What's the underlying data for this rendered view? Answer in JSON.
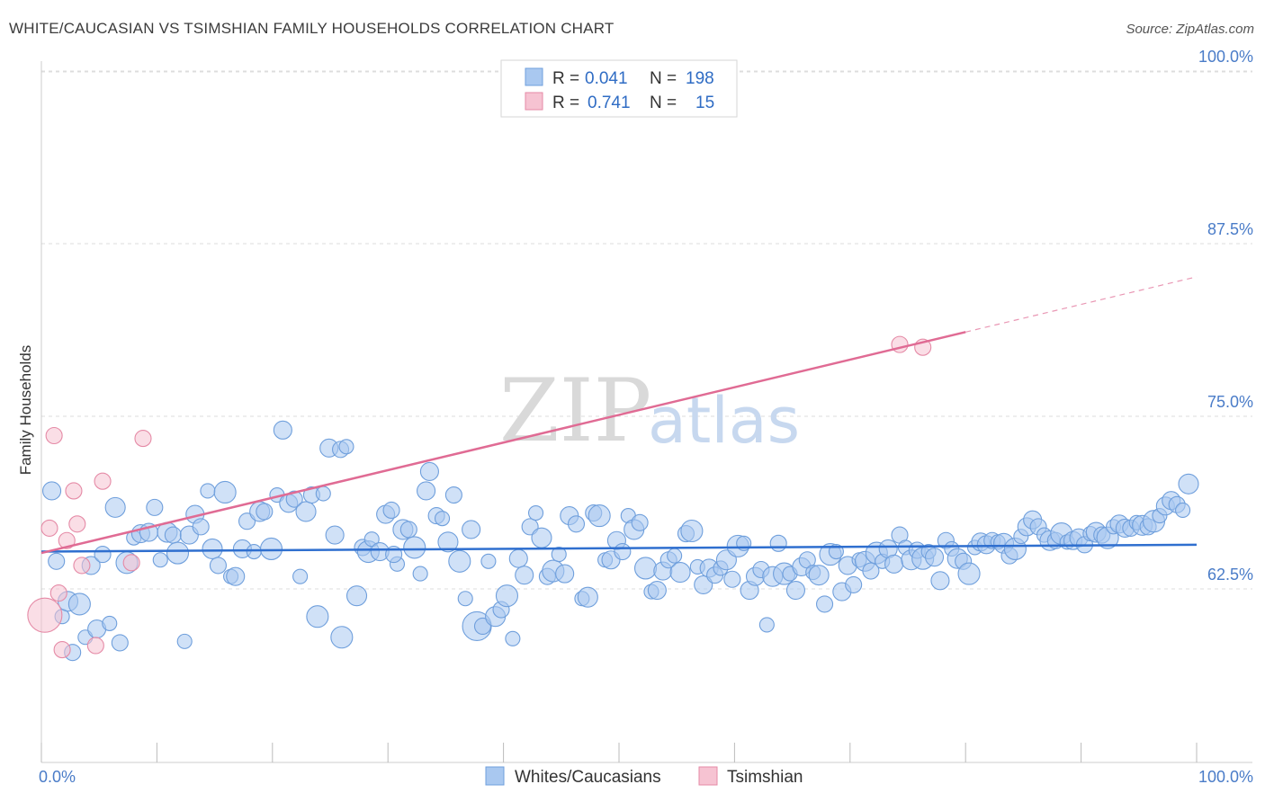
{
  "title": "WHITE/CAUCASIAN VS TSIMSHIAN FAMILY HOUSEHOLDS CORRELATION CHART",
  "source": "Source: ZipAtlas.com",
  "watermark": {
    "zip": "ZIP",
    "atlas": "atlas"
  },
  "colors": {
    "blue_fill": "#a9c8f0",
    "blue_stroke": "#6f9fdc",
    "blue_line": "#2f6fcf",
    "pink_fill": "#f6c3d2",
    "pink_stroke": "#e58aa6",
    "pink_line": "#e06b94",
    "grid": "#dddddd",
    "axis_text": "#4a7cc8"
  },
  "legend": {
    "rows": [
      {
        "r_label": "R =",
        "r_value": "0.041",
        "n_label": "N =",
        "n_value": "198",
        "color": "#a9c8f0"
      },
      {
        "r_label": "R =",
        "r_value": "0.741",
        "n_label": "N =",
        "n_value": "15",
        "color": "#f6c3d2"
      }
    ]
  },
  "chart_data": {
    "type": "scatter",
    "title": "WHITE/CAUCASIAN VS TSIMSHIAN FAMILY HOUSEHOLDS CORRELATION CHART",
    "ylabel": "Family Households",
    "xlabel": "",
    "xlim": [
      0,
      100
    ],
    "ylim": [
      52,
      100
    ],
    "x_tick_labels": [
      "0.0%",
      "100.0%"
    ],
    "y_ticks": [
      62.5,
      75.0,
      87.5,
      100.0
    ],
    "y_tick_labels": [
      "62.5%",
      "75.0%",
      "87.5%",
      "100.0%"
    ],
    "grid": true,
    "legend_position": "top-center",
    "series": [
      {
        "name": "Whites/Caucasians",
        "color": "#a9c8f0",
        "trend": {
          "x": [
            0,
            100
          ],
          "y": [
            65.2,
            65.7
          ]
        },
        "points": [
          [
            0.9,
            69.6
          ],
          [
            1.3,
            64.5
          ],
          [
            1.8,
            60.5
          ],
          [
            2.3,
            61.6
          ],
          [
            2.7,
            57.9
          ],
          [
            3.3,
            61.4
          ],
          [
            3.8,
            59.0
          ],
          [
            4.3,
            64.2
          ],
          [
            4.8,
            59.6
          ],
          [
            5.3,
            65.0
          ],
          [
            5.9,
            60.0
          ],
          [
            6.4,
            68.4
          ],
          [
            6.8,
            58.6
          ],
          [
            7.4,
            64.4
          ],
          [
            8.0,
            66.2
          ],
          [
            8.6,
            66.5
          ],
          [
            9.3,
            66.6
          ],
          [
            9.8,
            68.4
          ],
          [
            10.3,
            64.6
          ],
          [
            10.9,
            66.6
          ],
          [
            11.4,
            66.4
          ],
          [
            11.8,
            65.1
          ],
          [
            12.4,
            58.7
          ],
          [
            12.8,
            66.4
          ],
          [
            13.3,
            67.9
          ],
          [
            13.8,
            67.0
          ],
          [
            14.4,
            69.6
          ],
          [
            14.8,
            65.4
          ],
          [
            15.3,
            64.2
          ],
          [
            15.9,
            69.5
          ],
          [
            16.4,
            63.4
          ],
          [
            16.8,
            63.4
          ],
          [
            17.4,
            65.4
          ],
          [
            17.8,
            67.4
          ],
          [
            18.4,
            65.2
          ],
          [
            18.9,
            68.1
          ],
          [
            19.3,
            68.1
          ],
          [
            19.9,
            65.4
          ],
          [
            20.4,
            69.3
          ],
          [
            20.9,
            74.0
          ],
          [
            21.4,
            68.7
          ],
          [
            21.9,
            69.0
          ],
          [
            22.4,
            63.4
          ],
          [
            22.9,
            68.1
          ],
          [
            23.4,
            69.3
          ],
          [
            23.9,
            60.5
          ],
          [
            24.4,
            69.4
          ],
          [
            24.9,
            72.7
          ],
          [
            25.4,
            66.4
          ],
          [
            25.9,
            72.6
          ],
          [
            26.4,
            72.8
          ],
          [
            27.3,
            62.0
          ],
          [
            27.8,
            65.5
          ],
          [
            28.3,
            65.2
          ],
          [
            28.6,
            66.1
          ],
          [
            29.3,
            65.2
          ],
          [
            29.8,
            67.9
          ],
          [
            30.3,
            68.2
          ],
          [
            30.8,
            64.3
          ],
          [
            31.3,
            66.8
          ],
          [
            31.8,
            66.8
          ],
          [
            32.3,
            65.5
          ],
          [
            32.8,
            63.6
          ],
          [
            33.3,
            69.6
          ],
          [
            33.6,
            71.0
          ],
          [
            34.2,
            67.8
          ],
          [
            34.7,
            67.6
          ],
          [
            35.2,
            65.9
          ],
          [
            35.7,
            69.3
          ],
          [
            36.2,
            64.5
          ],
          [
            36.7,
            61.8
          ],
          [
            37.2,
            66.8
          ],
          [
            37.7,
            59.8
          ],
          [
            38.2,
            59.8
          ],
          [
            38.7,
            64.5
          ],
          [
            39.3,
            60.5
          ],
          [
            39.8,
            61.0
          ],
          [
            40.3,
            62.0
          ],
          [
            40.8,
            58.9
          ],
          [
            41.3,
            64.7
          ],
          [
            41.8,
            63.5
          ],
          [
            42.3,
            67.0
          ],
          [
            42.8,
            68.0
          ],
          [
            43.3,
            66.2
          ],
          [
            43.8,
            63.4
          ],
          [
            44.3,
            63.8
          ],
          [
            44.8,
            65.0
          ],
          [
            45.3,
            63.6
          ],
          [
            45.7,
            67.8
          ],
          [
            46.3,
            67.2
          ],
          [
            46.8,
            61.8
          ],
          [
            47.3,
            61.9
          ],
          [
            47.8,
            68.0
          ],
          [
            48.3,
            67.8
          ],
          [
            48.8,
            64.6
          ],
          [
            49.3,
            64.6
          ],
          [
            49.8,
            66.0
          ],
          [
            50.3,
            65.2
          ],
          [
            50.8,
            67.8
          ],
          [
            51.3,
            66.8
          ],
          [
            51.8,
            67.3
          ],
          [
            52.3,
            64.0
          ],
          [
            52.8,
            62.3
          ],
          [
            53.3,
            62.4
          ],
          [
            53.8,
            63.8
          ],
          [
            54.3,
            64.6
          ],
          [
            54.8,
            64.9
          ],
          [
            55.3,
            63.7
          ],
          [
            55.8,
            66.5
          ],
          [
            56.3,
            66.7
          ],
          [
            56.8,
            64.1
          ],
          [
            57.3,
            62.8
          ],
          [
            57.8,
            64.0
          ],
          [
            58.3,
            63.5
          ],
          [
            58.8,
            64.0
          ],
          [
            59.3,
            64.6
          ],
          [
            59.8,
            63.2
          ],
          [
            60.3,
            65.6
          ],
          [
            60.8,
            65.8
          ],
          [
            61.3,
            62.4
          ],
          [
            61.8,
            63.4
          ],
          [
            62.3,
            63.9
          ],
          [
            62.8,
            59.9
          ],
          [
            63.3,
            63.4
          ],
          [
            63.8,
            65.8
          ],
          [
            64.3,
            63.6
          ],
          [
            64.8,
            63.6
          ],
          [
            65.3,
            62.4
          ],
          [
            65.8,
            64.1
          ],
          [
            66.3,
            64.6
          ],
          [
            66.8,
            63.7
          ],
          [
            67.3,
            63.5
          ],
          [
            67.8,
            61.4
          ],
          [
            68.3,
            65.0
          ],
          [
            68.8,
            65.2
          ],
          [
            69.3,
            62.3
          ],
          [
            69.8,
            64.2
          ],
          [
            70.3,
            62.8
          ],
          [
            70.8,
            64.6
          ],
          [
            71.3,
            64.5
          ],
          [
            71.8,
            63.8
          ],
          [
            72.3,
            65.1
          ],
          [
            72.8,
            64.5
          ],
          [
            73.3,
            65.4
          ],
          [
            73.8,
            64.3
          ],
          [
            74.3,
            66.4
          ],
          [
            74.8,
            65.5
          ],
          [
            75.3,
            64.6
          ],
          [
            75.8,
            65.3
          ],
          [
            76.3,
            64.7
          ],
          [
            76.8,
            65.2
          ],
          [
            77.3,
            64.8
          ],
          [
            77.8,
            63.1
          ],
          [
            78.3,
            66.0
          ],
          [
            78.8,
            65.4
          ],
          [
            79.3,
            64.7
          ],
          [
            79.8,
            64.5
          ],
          [
            80.3,
            63.6
          ],
          [
            80.8,
            65.5
          ],
          [
            81.3,
            65.9
          ],
          [
            81.8,
            65.7
          ],
          [
            82.3,
            66.0
          ],
          [
            82.8,
            65.9
          ],
          [
            83.3,
            65.8
          ],
          [
            83.8,
            64.9
          ],
          [
            84.3,
            65.4
          ],
          [
            84.8,
            66.3
          ],
          [
            85.3,
            67.0
          ],
          [
            85.8,
            67.5
          ],
          [
            86.3,
            67.0
          ],
          [
            86.8,
            66.4
          ],
          [
            87.3,
            66.0
          ],
          [
            87.8,
            66.0
          ],
          [
            88.3,
            66.5
          ],
          [
            88.8,
            65.9
          ],
          [
            89.3,
            66.0
          ],
          [
            89.8,
            66.2
          ],
          [
            90.3,
            65.7
          ],
          [
            90.8,
            66.5
          ],
          [
            91.3,
            66.6
          ],
          [
            91.8,
            66.4
          ],
          [
            92.3,
            66.2
          ],
          [
            92.8,
            67.0
          ],
          [
            93.3,
            67.2
          ],
          [
            93.8,
            66.9
          ],
          [
            94.3,
            66.9
          ],
          [
            94.8,
            67.3
          ],
          [
            95.3,
            67.1
          ],
          [
            95.8,
            67.0
          ],
          [
            96.3,
            67.4
          ],
          [
            96.8,
            67.8
          ],
          [
            97.3,
            68.5
          ],
          [
            97.8,
            68.9
          ],
          [
            98.3,
            68.6
          ],
          [
            98.8,
            68.2
          ],
          [
            99.3,
            70.1
          ],
          [
            30.5,
            65.0
          ],
          [
            26.0,
            59.0
          ]
        ]
      },
      {
        "name": "Tsimshian",
        "color": "#f6c3d2",
        "trend": {
          "x": [
            0,
            80
          ],
          "y": [
            65.1,
            81.1
          ]
        },
        "trend_ext": {
          "x": [
            80,
            100
          ],
          "y": [
            81.1,
            85.1
          ]
        },
        "points": [
          [
            0.3,
            60.6
          ],
          [
            0.7,
            66.9
          ],
          [
            1.1,
            73.6
          ],
          [
            1.5,
            62.2
          ],
          [
            1.8,
            58.1
          ],
          [
            2.2,
            66.0
          ],
          [
            2.8,
            69.6
          ],
          [
            3.1,
            67.2
          ],
          [
            3.5,
            64.2
          ],
          [
            4.7,
            58.4
          ],
          [
            5.3,
            70.3
          ],
          [
            7.8,
            64.4
          ],
          [
            8.8,
            73.4
          ],
          [
            74.3,
            80.2
          ],
          [
            76.3,
            80.0
          ]
        ]
      }
    ]
  }
}
